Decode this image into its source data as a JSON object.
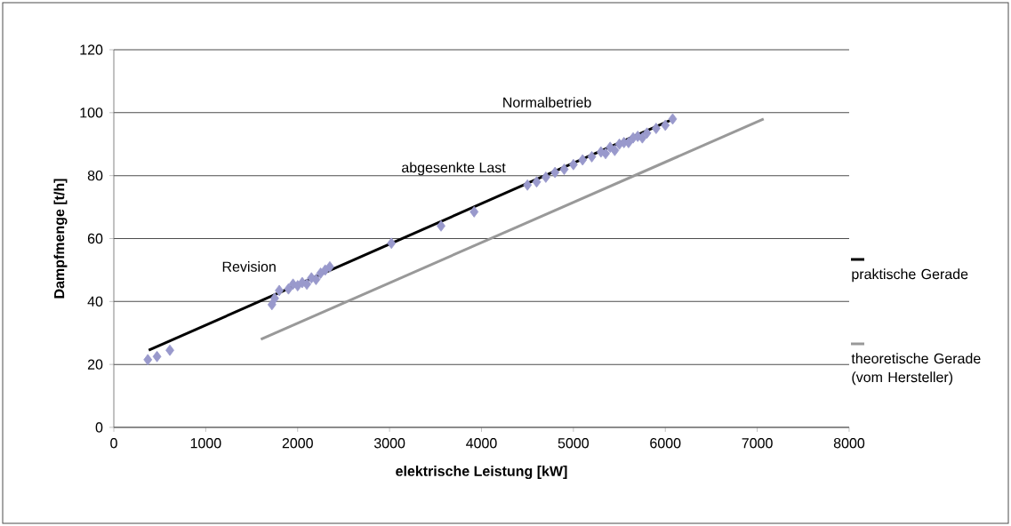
{
  "chart_data": {
    "type": "scatter",
    "xlabel": "elektrische Leistung [kW]",
    "ylabel": "Dampfmenge [t/h]",
    "xlim": [
      0,
      8000
    ],
    "ylim": [
      0,
      120
    ],
    "xticks": [
      0,
      1000,
      2000,
      3000,
      4000,
      5000,
      6000,
      7000,
      8000
    ],
    "yticks": [
      0,
      20,
      40,
      60,
      80,
      100,
      120
    ],
    "grid": "y",
    "legend": "right",
    "annotations": [
      "Revision",
      "abgesenkte Last",
      "Normalbetrieb"
    ],
    "series": [
      {
        "color": "#9999cc",
        "marker": "diamond",
        "x": [
          370,
          470,
          610,
          1720,
          1750,
          1800,
          1900,
          1950,
          2000,
          2050,
          2100,
          2150,
          2200,
          2250,
          2300,
          2350,
          3020,
          3560,
          3920,
          4500,
          4600,
          4700,
          4800,
          4900,
          5000,
          5100,
          5200,
          5300,
          5350,
          5400,
          5450,
          5500,
          5550,
          5600,
          5650,
          5700,
          5750,
          5800,
          5900,
          6000,
          6080
        ],
        "values": [
          21.5,
          22.5,
          24.5,
          39,
          41,
          43.5,
          44,
          45.5,
          45,
          46,
          45.5,
          47.5,
          47,
          49,
          50,
          51,
          58.5,
          64,
          68.5,
          77,
          78,
          79.5,
          81,
          82,
          83.5,
          85,
          86,
          87.5,
          87,
          89,
          88,
          90,
          90.5,
          90.5,
          92,
          92.5,
          92,
          93.5,
          95,
          96,
          98
        ]
      },
      {
        "type": "line",
        "name": "praktische Gerade",
        "color": "#000000",
        "marker": "none",
        "x": [
          380,
          6050
        ],
        "values": [
          24.5,
          97.5
        ]
      },
      {
        "type": "line",
        "name": "theoretische Gerade (vom Hersteller)",
        "color": "#999999",
        "marker": "none",
        "x": [
          1600,
          7070
        ],
        "values": [
          28,
          98
        ]
      }
    ]
  }
}
